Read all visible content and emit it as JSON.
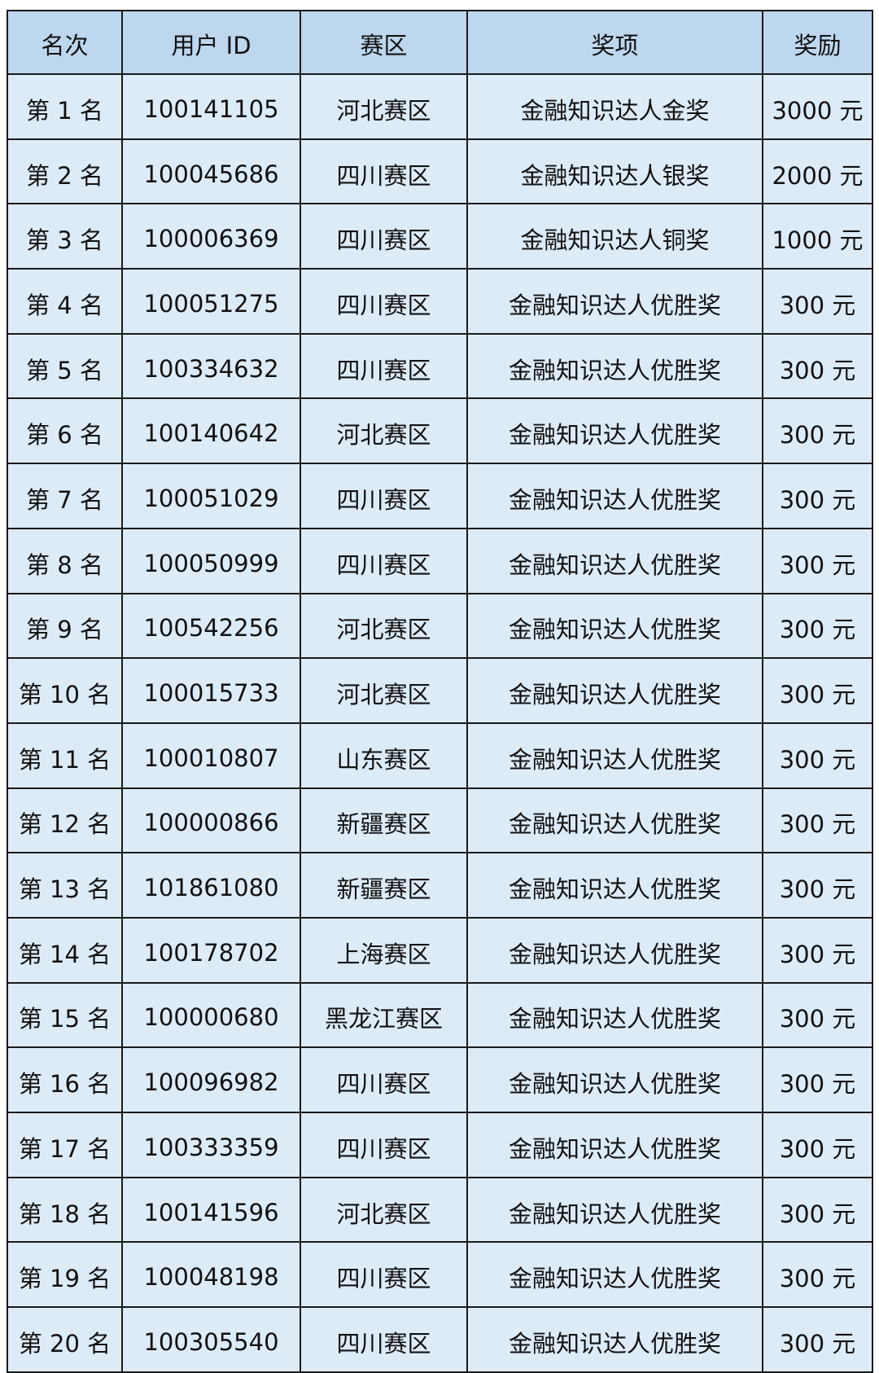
{
  "colors": {
    "header_bg": "#bdd7ee",
    "body_bg": "#ddebf7",
    "border": "#1a1a1a"
  },
  "headers": [
    "名次",
    "用户 ID",
    "赛区",
    "奖项",
    "奖励"
  ],
  "rows": [
    [
      "第 1 名",
      "100141105",
      "河北赛区",
      "金融知识达人金奖",
      "3000 元"
    ],
    [
      "第 2 名",
      "100045686",
      "四川赛区",
      "金融知识达人银奖",
      "2000 元"
    ],
    [
      "第 3 名",
      "100006369",
      "四川赛区",
      "金融知识达人铜奖",
      "1000 元"
    ],
    [
      "第 4 名",
      "100051275",
      "四川赛区",
      "金融知识达人优胜奖",
      "300 元"
    ],
    [
      "第 5 名",
      "100334632",
      "四川赛区",
      "金融知识达人优胜奖",
      "300 元"
    ],
    [
      "第 6 名",
      "100140642",
      "河北赛区",
      "金融知识达人优胜奖",
      "300 元"
    ],
    [
      "第 7 名",
      "100051029",
      "四川赛区",
      "金融知识达人优胜奖",
      "300 元"
    ],
    [
      "第 8 名",
      "100050999",
      "四川赛区",
      "金融知识达人优胜奖",
      "300 元"
    ],
    [
      "第 9 名",
      "100542256",
      "河北赛区",
      "金融知识达人优胜奖",
      "300 元"
    ],
    [
      "第 10 名",
      "100015733",
      "河北赛区",
      "金融知识达人优胜奖",
      "300 元"
    ],
    [
      "第 11 名",
      "100010807",
      "山东赛区",
      "金融知识达人优胜奖",
      "300 元"
    ],
    [
      "第 12 名",
      "100000866",
      "新疆赛区",
      "金融知识达人优胜奖",
      "300 元"
    ],
    [
      "第 13 名",
      "101861080",
      "新疆赛区",
      "金融知识达人优胜奖",
      "300 元"
    ],
    [
      "第 14 名",
      "100178702",
      "上海赛区",
      "金融知识达人优胜奖",
      "300 元"
    ],
    [
      "第 15 名",
      "100000680",
      "黑龙江赛区",
      "金融知识达人优胜奖",
      "300 元"
    ],
    [
      "第 16 名",
      "100096982",
      "四川赛区",
      "金融知识达人优胜奖",
      "300 元"
    ],
    [
      "第 17 名",
      "100333359",
      "四川赛区",
      "金融知识达人优胜奖",
      "300 元"
    ],
    [
      "第 18 名",
      "100141596",
      "河北赛区",
      "金融知识达人优胜奖",
      "300 元"
    ],
    [
      "第 19 名",
      "100048198",
      "四川赛区",
      "金融知识达人优胜奖",
      "300 元"
    ],
    [
      "第 20 名",
      "100305540",
      "四川赛区",
      "金融知识达人优胜奖",
      "300 元"
    ]
  ]
}
